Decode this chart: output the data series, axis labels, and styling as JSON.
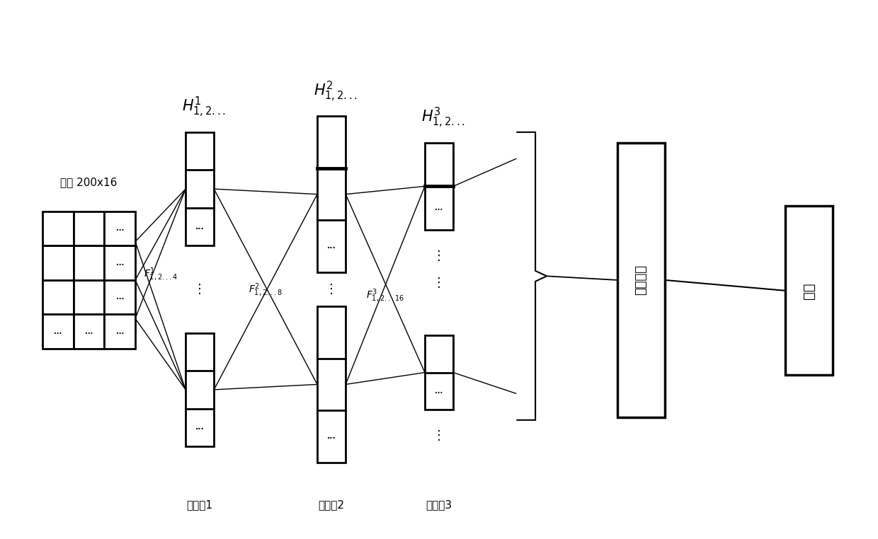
{
  "input_label": "输入 200x16",
  "layer_labels": [
    "卷积屢1",
    "卷积屢2",
    "卷积屢3"
  ],
  "fc_label": "全连接层",
  "output_label": "两类",
  "H1_label": "$H^1_{1,2...}$",
  "H2_label": "$H^2_{1,2...}$",
  "H3_label": "$H^3_{1,2...}$",
  "F1_label": "$F^1_{1,2...4}$",
  "F2_label": "$F^2_{1,2...8}$",
  "F3_label": "$F^3_{1,2...16}$",
  "bg_color": "#ffffff"
}
